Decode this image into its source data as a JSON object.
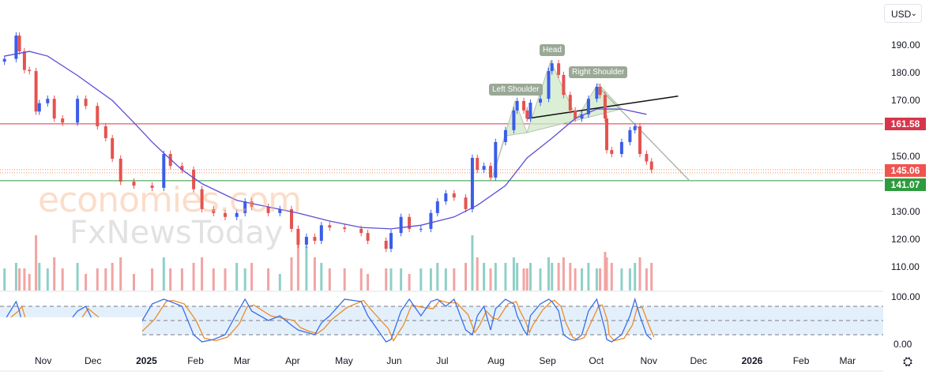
{
  "currency_selector": {
    "value": "USD",
    "icon": "chevron-down-icon"
  },
  "settings_icon": "gear-icon",
  "watermark": {
    "line1": "economies.com",
    "line2": "FxNewsToday"
  },
  "colors": {
    "up": "#3a5de8",
    "down": "#e5534f",
    "vol_up": "#8fd0c6",
    "vol_down": "#f2a3a3",
    "ma": "#5b4fd6",
    "resistance": "#d6364b",
    "support": "#2e9b3e",
    "last_price": "#f05350",
    "stoch_k": "#3a6ee8",
    "stoch_d": "#f08a24",
    "hs_fill": "#cfe8c8"
  },
  "chart_data": {
    "type": "candlestick",
    "title": "",
    "price_axis": {
      "ticks": [
        190,
        180,
        170,
        160,
        150,
        140,
        130,
        120,
        110
      ],
      "visible_ticks": [
        "190.00",
        "180.00",
        "170.00",
        "150.00",
        "130.00",
        "120.00",
        "110.00"
      ],
      "range": [
        106,
        196
      ]
    },
    "time_ticks": [
      {
        "label": "Nov",
        "date": "2024-11-01"
      },
      {
        "label": "Dec",
        "date": "2024-12-01"
      },
      {
        "label": "2025",
        "date": "2025-01-01",
        "bold": true
      },
      {
        "label": "Feb",
        "date": "2025-02-01"
      },
      {
        "label": "Mar",
        "date": "2025-03-01"
      },
      {
        "label": "Apr",
        "date": "2025-04-01"
      },
      {
        "label": "May",
        "date": "2025-05-01"
      },
      {
        "label": "Jun",
        "date": "2025-06-01"
      },
      {
        "label": "Jul",
        "date": "2025-07-01"
      },
      {
        "label": "Aug",
        "date": "2025-08-01"
      },
      {
        "label": "Sep",
        "date": "2025-09-01"
      },
      {
        "label": "Oct",
        "date": "2025-10-01"
      },
      {
        "label": "Nov",
        "date": "2025-11-01"
      },
      {
        "label": "Dec",
        "date": "2025-12-01"
      },
      {
        "label": "2026",
        "date": "2026-01-01",
        "bold": true
      },
      {
        "label": "Feb",
        "date": "2026-02-01"
      },
      {
        "label": "Mar",
        "date": "2026-03-01"
      }
    ],
    "candles": [
      {
        "d": "2024-10-09",
        "c": 185,
        "v": 4,
        "k": 50
      },
      {
        "d": "2024-10-16",
        "c": 193.4,
        "v": 5,
        "k": 90
      },
      {
        "d": "2024-10-18",
        "c": 187.7,
        "v": 4,
        "k": 70
      },
      {
        "d": "2024-10-21",
        "c": 181,
        "v": 4,
        "k": 20
      },
      {
        "d": "2024-10-24",
        "c": 180.6,
        "v": 3,
        "k": 10
      },
      {
        "d": "2024-10-28",
        "c": 166,
        "v": 10,
        "k": 15
      },
      {
        "d": "2024-10-30",
        "c": 169,
        "v": 5,
        "k": 20
      },
      {
        "d": "2024-11-04",
        "c": 170.6,
        "v": 4,
        "k": 30
      },
      {
        "d": "2024-11-08",
        "c": 163.5,
        "v": 6,
        "k": 20
      },
      {
        "d": "2024-11-13",
        "c": 162,
        "v": 4,
        "k": 30
      },
      {
        "d": "2024-11-22",
        "c": 170.6,
        "v": 5,
        "k": 70
      },
      {
        "d": "2024-11-27",
        "c": 168,
        "v": 3,
        "k": 80
      },
      {
        "d": "2024-12-04",
        "c": 160.7,
        "v": 4,
        "k": 30
      },
      {
        "d": "2024-12-09",
        "c": 156.4,
        "v": 4,
        "k": 20
      },
      {
        "d": "2024-12-13",
        "c": 149,
        "v": 5,
        "k": 15
      },
      {
        "d": "2024-12-18",
        "c": 140.7,
        "v": 6,
        "k": 10
      },
      {
        "d": "2024-12-26",
        "c": 139.3,
        "v": 3,
        "k": 20
      },
      {
        "d": "2025-01-06",
        "c": 138.5,
        "v": 4,
        "k": 85
      },
      {
        "d": "2025-01-13",
        "c": 150.7,
        "v": 6,
        "k": 95
      },
      {
        "d": "2025-01-17",
        "c": 146.4,
        "v": 4,
        "k": 90
      },
      {
        "d": "2025-01-24",
        "c": 145,
        "v": 4,
        "k": 80
      },
      {
        "d": "2025-01-31",
        "c": 138,
        "v": 5,
        "k": 20
      },
      {
        "d": "2025-02-05",
        "c": 130.8,
        "v": 6,
        "k": 5
      },
      {
        "d": "2025-02-12",
        "c": 129.4,
        "v": 4,
        "k": 10
      },
      {
        "d": "2025-02-19",
        "c": 128,
        "v": 4,
        "k": 20
      },
      {
        "d": "2025-02-26",
        "c": 129.4,
        "v": 5,
        "k": 65
      },
      {
        "d": "2025-03-03",
        "c": 133.6,
        "v": 4,
        "k": 95
      },
      {
        "d": "2025-03-07",
        "c": 131.6,
        "v": 5,
        "k": 70
      },
      {
        "d": "2025-03-17",
        "c": 129.4,
        "v": 4,
        "k": 50
      },
      {
        "d": "2025-03-24",
        "c": 130.8,
        "v": 3,
        "k": 60
      },
      {
        "d": "2025-03-31",
        "c": 123.7,
        "v": 6,
        "k": 40
      },
      {
        "d": "2025-04-04",
        "c": 118,
        "v": 9,
        "k": 30
      },
      {
        "d": "2025-04-09",
        "c": 120.8,
        "v": 8,
        "k": 25
      },
      {
        "d": "2025-04-14",
        "c": 119.4,
        "v": 6,
        "k": 20
      },
      {
        "d": "2025-04-18",
        "c": 125,
        "v": 5,
        "k": 45
      },
      {
        "d": "2025-04-23",
        "c": 124.2,
        "v": 4,
        "k": 60
      },
      {
        "d": "2025-05-02",
        "c": 123.7,
        "v": 4,
        "k": 95
      },
      {
        "d": "2025-05-12",
        "c": 122.2,
        "v": 4,
        "k": 90
      },
      {
        "d": "2025-05-16",
        "c": 119.4,
        "v": 3,
        "k": 60
      },
      {
        "d": "2025-05-27",
        "c": 116.5,
        "v": 4,
        "k": 5
      },
      {
        "d": "2025-05-30",
        "c": 122.2,
        "v": 4,
        "k": 10
      },
      {
        "d": "2025-06-05",
        "c": 128,
        "v": 4,
        "k": 70
      },
      {
        "d": "2025-06-10",
        "c": 123.7,
        "v": 3,
        "k": 95
      },
      {
        "d": "2025-06-17",
        "c": 123.7,
        "v": 4,
        "k": 60
      },
      {
        "d": "2025-06-23",
        "c": 129.4,
        "v": 4,
        "k": 90
      },
      {
        "d": "2025-06-27",
        "c": 133.6,
        "v": 5,
        "k": 95
      },
      {
        "d": "2025-07-02",
        "c": 136.5,
        "v": 4,
        "k": 80
      },
      {
        "d": "2025-07-07",
        "c": 135,
        "v": 4,
        "k": 95
      },
      {
        "d": "2025-07-14",
        "c": 130.8,
        "v": 5,
        "k": 30
      },
      {
        "d": "2025-07-18",
        "c": 149.3,
        "v": 10,
        "k": 20
      },
      {
        "d": "2025-07-21",
        "c": 145,
        "v": 6,
        "k": 60
      },
      {
        "d": "2025-07-25",
        "c": 146.4,
        "v": 5,
        "k": 80
      },
      {
        "d": "2025-07-29",
        "c": 142.2,
        "v": 4,
        "k": 30
      },
      {
        "d": "2025-08-01",
        "c": 155,
        "v": 5,
        "k": 75
      },
      {
        "d": "2025-08-07",
        "c": 159.3,
        "v": 5,
        "k": 95
      },
      {
        "d": "2025-08-12",
        "c": 166.4,
        "v": 6,
        "k": 85
      },
      {
        "d": "2025-08-14",
        "c": 169.8,
        "v": 5,
        "k": 60
      },
      {
        "d": "2025-08-18",
        "c": 166.4,
        "v": 4,
        "k": 30
      },
      {
        "d": "2025-08-20",
        "c": 163.5,
        "v": 4,
        "k": 20
      },
      {
        "d": "2025-08-22",
        "c": 169.2,
        "v": 5,
        "k": 60
      },
      {
        "d": "2025-08-28",
        "c": 170.6,
        "v": 4,
        "k": 85
      },
      {
        "d": "2025-09-02",
        "c": 180.6,
        "v": 6,
        "k": 95
      },
      {
        "d": "2025-09-04",
        "c": 183.4,
        "v": 5,
        "k": 90
      },
      {
        "d": "2025-09-08",
        "c": 179.2,
        "v": 5,
        "k": 70
      },
      {
        "d": "2025-09-11",
        "c": 172,
        "v": 6,
        "k": 20
      },
      {
        "d": "2025-09-15",
        "c": 166.4,
        "v": 5,
        "k": 10
      },
      {
        "d": "2025-09-18",
        "c": 163.5,
        "v": 4,
        "k": 8
      },
      {
        "d": "2025-09-22",
        "c": 165,
        "v": 4,
        "k": 20
      },
      {
        "d": "2025-09-26",
        "c": 170.6,
        "v": 5,
        "k": 70
      },
      {
        "d": "2025-10-01",
        "c": 174.9,
        "v": 4,
        "k": 95
      },
      {
        "d": "2025-10-03",
        "c": 172,
        "v": 4,
        "k": 70
      },
      {
        "d": "2025-10-06",
        "c": 163.5,
        "v": 7,
        "k": 30
      },
      {
        "d": "2025-10-07",
        "c": 152.1,
        "v": 6,
        "k": 10
      },
      {
        "d": "2025-10-10",
        "c": 150.7,
        "v": 5,
        "k": 5
      },
      {
        "d": "2025-10-16",
        "c": 155,
        "v": 4,
        "k": 20
      },
      {
        "d": "2025-10-21",
        "c": 159.3,
        "v": 4,
        "k": 60
      },
      {
        "d": "2025-10-24",
        "c": 160.7,
        "v": 5,
        "k": 95
      },
      {
        "d": "2025-10-27",
        "c": 150.7,
        "v": 6,
        "k": 60
      },
      {
        "d": "2025-10-31",
        "c": 148,
        "v": 4,
        "k": 20
      },
      {
        "d": "2025-11-03",
        "c": 145.06,
        "v": 5,
        "k": 10
      }
    ],
    "moving_average": [
      [
        "2024-10-09",
        186
      ],
      [
        "2024-10-24",
        187.7
      ],
      [
        "2024-11-04",
        186
      ],
      [
        "2024-11-22",
        179
      ],
      [
        "2024-12-13",
        170
      ],
      [
        "2024-12-26",
        162
      ],
      [
        "2025-01-06",
        155
      ],
      [
        "2025-01-13",
        151
      ],
      [
        "2025-01-24",
        145
      ],
      [
        "2025-02-05",
        140
      ],
      [
        "2025-02-26",
        134
      ],
      [
        "2025-03-17",
        131.6
      ],
      [
        "2025-04-04",
        129.4
      ],
      [
        "2025-04-23",
        126.5
      ],
      [
        "2025-05-12",
        124.2
      ],
      [
        "2025-05-30",
        123.7
      ],
      [
        "2025-06-17",
        125
      ],
      [
        "2025-07-07",
        128
      ],
      [
        "2025-07-21",
        132.2
      ],
      [
        "2025-08-07",
        139.3
      ],
      [
        "2025-08-20",
        149.3
      ],
      [
        "2025-09-04",
        156.4
      ],
      [
        "2025-09-18",
        163.5
      ],
      [
        "2025-10-01",
        166.9
      ],
      [
        "2025-10-16",
        166.9
      ],
      [
        "2025-10-31",
        165
      ]
    ],
    "levels": {
      "resistance": {
        "value": 161.58,
        "label": "161.58"
      },
      "last_price": {
        "value": 145.06,
        "label": "145.06"
      },
      "support": {
        "value": 141.07,
        "label": "141.07"
      }
    },
    "stochastic": {
      "ticks": [
        "100.00",
        "0.00"
      ],
      "levels": [
        80,
        50,
        20
      ],
      "range": [
        0,
        100
      ]
    },
    "pattern": {
      "labels": {
        "left_shoulder": "Left Shoulder",
        "head": "Head",
        "right_shoulder": "Right Shoulder"
      },
      "neckline": [
        [
          "2025-08-20",
          163.5
        ],
        [
          "2025-10-31",
          171
        ]
      ],
      "breakdown_line": [
        [
          "2025-10-01",
          175
        ],
        [
          "2025-11-26",
          141
        ]
      ]
    }
  }
}
